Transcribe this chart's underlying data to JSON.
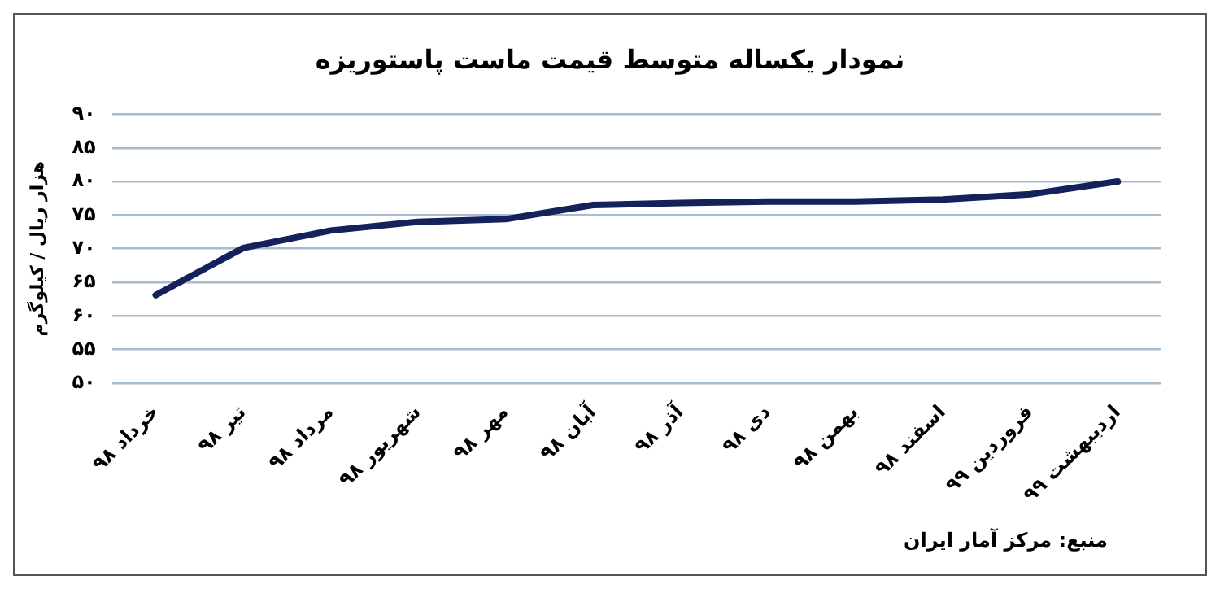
{
  "chart_data": {
    "type": "line",
    "title": "نمودار یکساله متوسط قیمت ماست پاستوریزه",
    "ylabel": "هزار ریال / کیلوگرم",
    "categories": [
      "خرداد ۹۸",
      "تیر ۹۸",
      "مرداد ۹۸",
      "شهریور ۹۸",
      "مهر ۹۸",
      "آبان ۹۸",
      "آذر ۹۸",
      "دی ۹۸",
      "بهمن ۹۸",
      "اسفند ۹۸",
      "فروردین ۹۹",
      "اردیبهشت ۹۹"
    ],
    "series": [
      {
        "color": "#14215a",
        "values": [
          63.1,
          70.1,
          72.7,
          74,
          74.4,
          76.5,
          76.8,
          77,
          77,
          77.3,
          78.1,
          80
        ]
      }
    ],
    "ylim": [
      50,
      90
    ],
    "yticks": [
      {
        "value": 50,
        "label": "۵۰"
      },
      {
        "value": 55,
        "label": "۵۵"
      },
      {
        "value": 60,
        "label": "۶۰"
      },
      {
        "value": 65,
        "label": "۶۵"
      },
      {
        "value": 70,
        "label": "۷۰"
      },
      {
        "value": 75,
        "label": "۷۵"
      },
      {
        "value": 80,
        "label": "۸۰"
      },
      {
        "value": 85,
        "label": "۸۵"
      },
      {
        "value": 90,
        "label": "۹۰"
      }
    ],
    "grid": "y",
    "legend": false,
    "marker": "none",
    "line_style": "solid",
    "annotations": [
      "منبع: مرکز آمار ایران"
    ]
  }
}
